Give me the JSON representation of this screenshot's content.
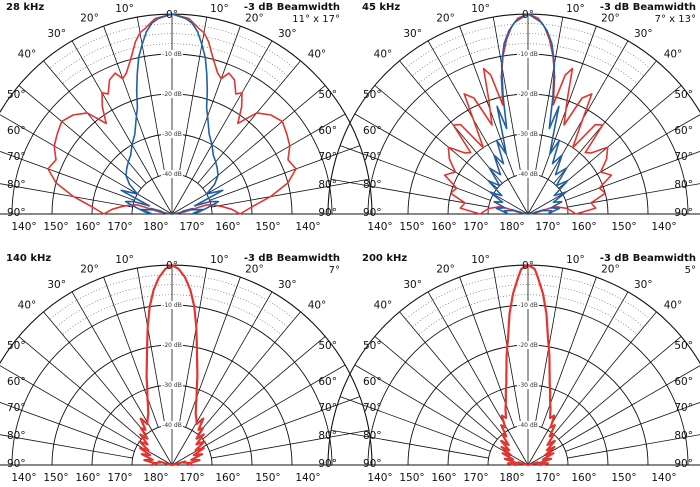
{
  "colors": {
    "red": "#e3342f",
    "blue": "#1f5fa8",
    "grid": "#111111"
  },
  "angle_labels": {
    "top": [
      "0°"
    ],
    "upper": [
      "10°",
      "10°",
      "20°",
      "20°",
      "30°",
      "30°",
      "40°",
      "40°"
    ],
    "side": [
      "50°",
      "50°",
      "60°",
      "60°",
      "70°",
      "70°",
      "80°",
      "80°",
      "90°",
      "90°"
    ],
    "bottom": [
      "140°",
      "150°",
      "160°",
      "170°",
      "180°",
      "170°",
      "160°",
      "150°",
      "140°"
    ]
  },
  "db_labels": [
    "-10 dB",
    "-20 dB",
    "-30 dB",
    "-40 dB"
  ],
  "chart_data": [
    {
      "type": "polar-line",
      "frequency_label": "28 kHz",
      "beamwidth_title": "-3 dB Beamwidth",
      "beamwidth_value": "11° x 17°",
      "r_range_db": [
        -50,
        0
      ],
      "series": [
        {
          "color": "red",
          "angles": [
            0,
            5,
            8,
            10,
            12,
            15,
            18,
            20,
            22,
            25,
            28,
            30,
            33,
            36,
            40,
            45,
            50,
            55,
            60,
            65,
            70,
            75,
            80,
            85,
            90,
            95,
            100,
            110,
            120,
            140,
            160,
            180
          ],
          "values": [
            0,
            -1,
            -3,
            -4,
            -6,
            -10,
            -13,
            -14,
            -12,
            -13,
            -16,
            -15,
            -18,
            -22,
            -17,
            -15,
            -14,
            -15,
            -16,
            -18,
            -17,
            -20,
            -25,
            -30,
            -33,
            -35,
            -37,
            -39,
            -40,
            -40,
            -41,
            -41
          ]
        },
        {
          "color": "blue",
          "angles": [
            0,
            4,
            6,
            8,
            10,
            12,
            14,
            16,
            18,
            20,
            25,
            30,
            35,
            40,
            45,
            50,
            55,
            60,
            65,
            68,
            70,
            72,
            75,
            80,
            85,
            90,
            95,
            100,
            110,
            120,
            135,
            150,
            170,
            180
          ],
          "values": [
            0,
            -1,
            -2,
            -4,
            -7,
            -10,
            -14,
            -18,
            -22,
            -24,
            -28,
            -30,
            -32,
            -33,
            -34,
            -35,
            -37,
            -40,
            -36,
            -42,
            -44,
            -40,
            -38,
            -41,
            -43,
            -45,
            -44,
            -42,
            -45,
            -44,
            -46,
            -45,
            -42,
            -44
          ]
        }
      ]
    },
    {
      "type": "polar-line",
      "frequency_label": "45 kHz",
      "beamwidth_title": "-3 dB Beamwidth",
      "beamwidth_value": "7° x 13°",
      "r_range_db": [
        -50,
        0
      ],
      "series": [
        {
          "color": "red",
          "angles": [
            0,
            3,
            5,
            7,
            9,
            11,
            13,
            15,
            17,
            19,
            22,
            25,
            28,
            31,
            34,
            37,
            40,
            43,
            46,
            50,
            55,
            60,
            65,
            70,
            75,
            80,
            85,
            90,
            100,
            115,
            130,
            150,
            170,
            180
          ],
          "values": [
            0,
            -1,
            -3,
            -6,
            -10,
            -15,
            -22,
            -14,
            -12,
            -20,
            -26,
            -18,
            -16,
            -25,
            -30,
            -22,
            -21,
            -29,
            -28,
            -24,
            -26,
            -29,
            -27,
            -31,
            -30,
            -34,
            -33,
            -38,
            -40,
            -42,
            -43,
            -44,
            -43,
            -44
          ]
        },
        {
          "color": "blue",
          "angles": [
            0,
            2,
            4,
            6,
            8,
            10,
            12,
            14,
            16,
            18,
            20,
            23,
            26,
            30,
            35,
            40,
            45,
            50,
            55,
            60,
            65,
            70,
            75,
            80,
            85,
            90,
            100,
            110,
            125,
            140,
            160,
            180
          ],
          "values": [
            0,
            -1,
            -2,
            -4,
            -7,
            -12,
            -20,
            -28,
            -22,
            -30,
            -34,
            -30,
            -36,
            -33,
            -38,
            -35,
            -40,
            -37,
            -42,
            -39,
            -43,
            -41,
            -44,
            -42,
            -44,
            -45,
            -44,
            -46,
            -45,
            -47,
            -46,
            -47
          ]
        }
      ]
    },
    {
      "type": "polar-line",
      "frequency_label": "140 kHz",
      "beamwidth_title": "-3 dB Beamwidth",
      "beamwidth_value": "7°",
      "r_range_db": [
        -50,
        0
      ],
      "series": [
        {
          "color": "red",
          "angles": [
            0,
            2,
            4,
            6,
            8,
            10,
            12,
            14,
            16,
            18,
            20,
            22,
            25,
            28,
            31,
            34,
            37,
            40,
            43,
            46,
            50,
            54,
            58,
            62,
            66,
            70,
            75,
            80,
            85,
            90,
            100,
            110,
            125,
            140,
            160,
            180
          ],
          "values": [
            0,
            -1,
            -3,
            -6,
            -10,
            -15,
            -20,
            -24,
            -27,
            -30,
            -32,
            -34,
            -36,
            -37,
            -38,
            -36,
            -39,
            -38,
            -41,
            -39,
            -42,
            -40,
            -43,
            -41,
            -44,
            -42,
            -45,
            -43,
            -46,
            -45,
            -46,
            -47,
            -46,
            -48,
            -47,
            -48
          ]
        }
      ]
    },
    {
      "type": "polar-line",
      "frequency_label": "200 kHz",
      "beamwidth_title": "-3 dB Beamwidth",
      "beamwidth_value": "5°",
      "r_range_db": [
        -50,
        0
      ],
      "series": [
        {
          "color": "red",
          "angles": [
            0,
            2,
            3,
            5,
            7,
            9,
            11,
            13,
            15,
            17,
            19,
            22,
            25,
            28,
            31,
            34,
            37,
            40,
            44,
            48,
            52,
            56,
            60,
            65,
            70,
            75,
            80,
            85,
            90,
            100,
            110,
            125,
            140,
            160,
            180
          ],
          "values": [
            0,
            -1,
            -3,
            -7,
            -12,
            -18,
            -22,
            -26,
            -29,
            -31,
            -33,
            -35,
            -37,
            -36,
            -39,
            -38,
            -41,
            -40,
            -43,
            -41,
            -44,
            -42,
            -45,
            -43,
            -46,
            -44,
            -47,
            -45,
            -47,
            -46,
            -48,
            -47,
            -48,
            -47,
            -48
          ]
        }
      ]
    }
  ]
}
